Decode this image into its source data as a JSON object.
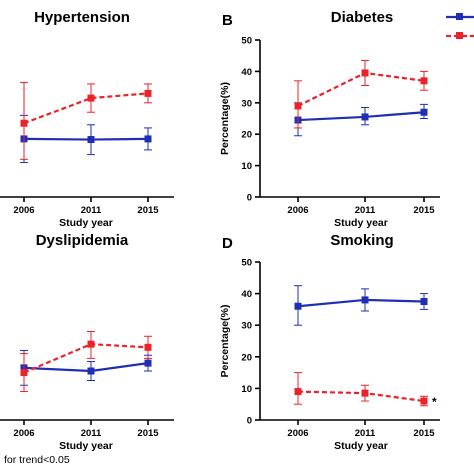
{
  "colors": {
    "series1": "#1f2fb4",
    "series2": "#e8232a",
    "axis": "#000000"
  },
  "footnote": "for trend<0.05",
  "chart_data": [
    {
      "panel": "",
      "type": "line",
      "title": "Hypertension",
      "x": [
        "2006",
        "2011",
        "2015"
      ],
      "xlabel": "Study year",
      "ylabel": "",
      "ylim": [
        0,
        50
      ],
      "yticks": [],
      "series": [
        {
          "style": "solid-square",
          "values": [
            18.5,
            18.3,
            18.5
          ],
          "err_low": [
            11,
            13.5,
            15
          ],
          "err_high": [
            26,
            23,
            22
          ]
        },
        {
          "style": "dashed-square",
          "values": [
            23.5,
            31.5,
            33
          ],
          "err_low": [
            12,
            27,
            30
          ],
          "err_high": [
            36.5,
            36,
            36
          ]
        }
      ]
    },
    {
      "panel": "B",
      "type": "line",
      "title": "Diabetes",
      "x": [
        "2006",
        "2011",
        "2015"
      ],
      "xlabel": "Study year",
      "ylabel": "Percentage(%)",
      "ylim": [
        0,
        50
      ],
      "yticks": [
        "0",
        "10",
        "20",
        "30",
        "40",
        "50"
      ],
      "series": [
        {
          "style": "solid-square",
          "values": [
            24.5,
            25.5,
            27
          ],
          "err_low": [
            19.5,
            23,
            25
          ],
          "err_high": [
            30,
            28.5,
            29.5
          ]
        },
        {
          "style": "dashed-square",
          "values": [
            29,
            39.5,
            37
          ],
          "err_low": [
            22,
            35.5,
            34
          ],
          "err_high": [
            37,
            43.5,
            40
          ]
        }
      ]
    },
    {
      "panel": "",
      "type": "line",
      "title": "Dyslipidemia",
      "x": [
        "2006",
        "2011",
        "2015"
      ],
      "xlabel": "Study year",
      "ylabel": "",
      "ylim": [
        0,
        50
      ],
      "yticks": [],
      "series": [
        {
          "style": "solid-square",
          "values": [
            16.5,
            15.5,
            18
          ],
          "err_low": [
            11,
            12.5,
            15.5
          ],
          "err_high": [
            22,
            18.5,
            20.5
          ]
        },
        {
          "style": "dashed-square",
          "values": [
            15,
            24,
            23
          ],
          "err_low": [
            9,
            19.5,
            19.5
          ],
          "err_high": [
            21,
            28,
            26.5
          ]
        }
      ]
    },
    {
      "panel": "D",
      "type": "line",
      "title": "Smoking",
      "x": [
        "2006",
        "2011",
        "2015"
      ],
      "xlabel": "Study year",
      "ylabel": "Percentage(%)",
      "ylim": [
        0,
        50
      ],
      "yticks": [
        "0",
        "10",
        "20",
        "30",
        "40",
        "50"
      ],
      "annotation": "*",
      "series": [
        {
          "style": "solid-square",
          "values": [
            36,
            38,
            37.5
          ],
          "err_low": [
            30,
            34.5,
            35
          ],
          "err_high": [
            42.5,
            41.5,
            40
          ]
        },
        {
          "style": "dashed-square",
          "values": [
            9,
            8.5,
            6
          ],
          "err_low": [
            5,
            6,
            4.5
          ],
          "err_high": [
            15,
            11,
            7.5
          ]
        }
      ]
    }
  ]
}
